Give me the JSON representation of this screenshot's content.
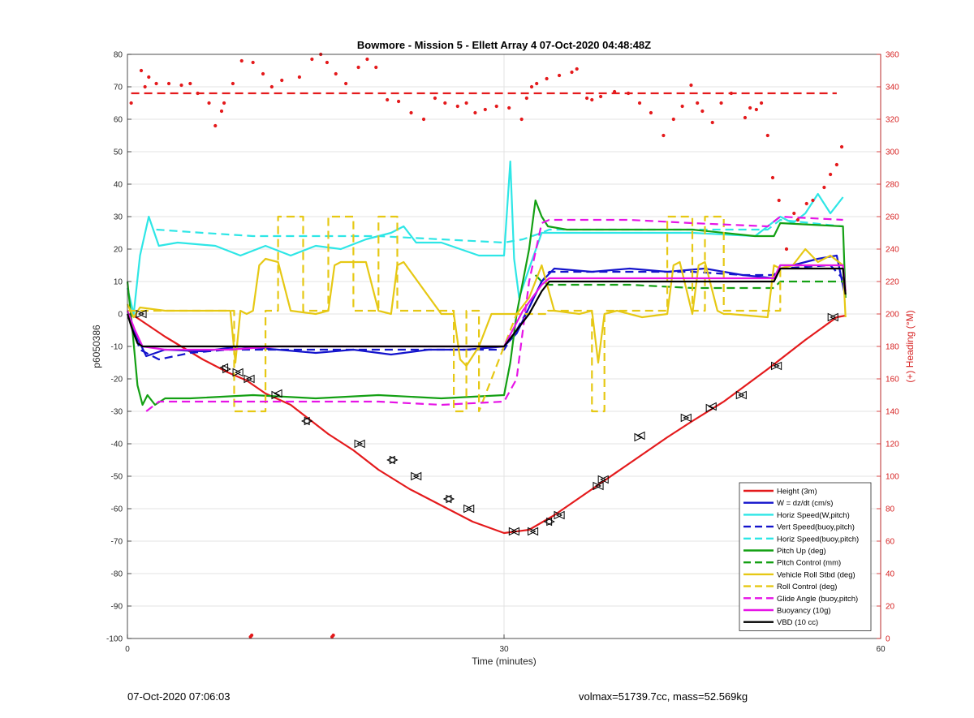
{
  "figure": {
    "footer_left": "07-Oct-2020 07:06:03",
    "footer_right": "volmax=51739.7cc, mass=52.569kg"
  },
  "chart_data": {
    "type": "line",
    "title": "Bowmore - Mission 5 - Ellett Array 4 07-Oct-2020 04:48:48Z",
    "xlabel": "Time (minutes)",
    "ylabel_left": "p6050386",
    "ylabel_right": "(+) Heading (°M)",
    "xlim": [
      0,
      60
    ],
    "ylim_left": [
      -100,
      80
    ],
    "ylim_right": [
      0,
      360
    ],
    "xticks": [
      0,
      30,
      60
    ],
    "yticks_left": [
      -100,
      -90,
      -80,
      -70,
      -60,
      -50,
      -40,
      -30,
      -20,
      -10,
      0,
      10,
      20,
      30,
      40,
      50,
      60,
      70,
      80
    ],
    "yticks_right": [
      0,
      20,
      40,
      60,
      80,
      100,
      120,
      140,
      160,
      180,
      200,
      220,
      240,
      260,
      280,
      300,
      320,
      340,
      360
    ],
    "grid": true,
    "legend_position": "bottom-right",
    "colors": {
      "red": "#e41a1c",
      "blue": "#1414cc",
      "cyan": "#2ee6e6",
      "green": "#14a014",
      "yellow": "#e6c814",
      "magenta": "#e614e6",
      "black": "#000000",
      "axis_red": "#d62020"
    },
    "series": [
      {
        "name": "Height (3m)",
        "color": "red",
        "style": "solid",
        "axis": "left",
        "x": [
          0,
          0.7,
          3,
          6,
          8,
          9.5,
          11,
          13,
          16,
          18,
          20,
          22.5,
          25,
          27.5,
          30,
          32,
          34,
          37,
          40,
          43,
          45,
          47.5,
          51,
          54,
          56.5,
          57.2
        ],
        "y": [
          0,
          -1,
          -7,
          -14,
          -18,
          -20.5,
          -24.5,
          -28,
          -37,
          -42,
          -48,
          -54,
          -59,
          -64,
          -67.5,
          -66.5,
          -62,
          -54,
          -46,
          -38,
          -33,
          -27,
          -17,
          -8,
          -1,
          -0.5
        ]
      },
      {
        "name": "W = dz/dt (cm/s)",
        "color": "blue",
        "style": "solid",
        "axis": "left",
        "x": [
          0,
          0.5,
          1.5,
          3,
          6,
          9,
          12,
          15,
          18,
          21,
          24,
          27,
          30,
          31,
          32,
          33,
          34,
          37,
          40,
          43,
          46,
          49,
          51.5,
          52,
          53,
          55,
          56.5,
          57.2
        ],
        "y": [
          0,
          -5,
          -13,
          -11,
          -11.5,
          -10,
          -11,
          -12,
          -11,
          -12.5,
          -11,
          -11,
          -10,
          -6,
          2,
          10,
          14,
          13,
          14,
          13,
          14,
          12,
          11,
          15,
          15,
          17,
          18,
          5
        ]
      },
      {
        "name": "Horiz Speed(W,pitch)",
        "color": "cyan",
        "style": "solid",
        "axis": "left",
        "x": [
          0,
          0.5,
          1,
          1.7,
          2.5,
          4,
          7,
          9,
          11,
          13,
          15,
          17,
          19,
          21,
          22,
          23,
          25,
          28,
          30,
          30.5,
          30.8,
          31.2,
          32,
          33,
          35,
          40,
          45,
          50,
          52,
          53,
          54,
          55,
          56,
          57
        ],
        "y": [
          8,
          0,
          18,
          30,
          21,
          22,
          21,
          18,
          21,
          18,
          21,
          20,
          23,
          25,
          27,
          22,
          22,
          18,
          18,
          47,
          17,
          5,
          14,
          25,
          25,
          25,
          25,
          24,
          30,
          28,
          31,
          37,
          31,
          36
        ]
      },
      {
        "name": "Vert Speed(buoy,pitch)",
        "color": "blue",
        "style": "dashed",
        "axis": "left",
        "x": [
          0,
          1,
          2.5,
          5,
          8,
          11,
          14,
          18,
          22,
          26,
          30,
          31,
          32,
          33,
          33.6,
          40,
          45,
          49,
          51.5,
          52,
          56,
          57.2
        ],
        "y": [
          0,
          -11,
          -14,
          -12,
          -11,
          -11,
          -11,
          -11,
          -11,
          -11,
          -11,
          -5,
          2,
          10,
          13,
          13,
          13,
          12,
          12,
          14,
          15,
          10
        ]
      },
      {
        "name": "Horiz Speed(buoy,pitch)",
        "color": "cyan",
        "style": "dashed",
        "axis": "left",
        "x": [
          2.3,
          6,
          10,
          15,
          20,
          25,
          30,
          31.5,
          33,
          33.6,
          40,
          45,
          51,
          52,
          57
        ],
        "y": [
          26,
          25,
          24,
          24,
          24,
          23,
          22,
          23,
          25,
          26,
          26,
          26,
          26,
          29,
          27
        ]
      },
      {
        "name": "Pitch Up (deg)",
        "color": "green",
        "style": "solid",
        "axis": "left",
        "x": [
          0,
          0.4,
          0.8,
          1.2,
          1.6,
          2.2,
          3,
          5,
          10,
          15,
          20,
          25,
          30,
          30.5,
          31,
          32,
          32.5,
          33,
          33.5,
          35,
          40,
          45,
          50,
          51.5,
          52,
          57,
          57.2
        ],
        "y": [
          10,
          -5,
          -22,
          -28,
          -25,
          -28,
          -26,
          -26,
          -25,
          -26,
          -25,
          -26,
          -25,
          -15,
          0,
          20,
          35,
          30,
          27,
          26,
          26,
          26,
          24,
          24,
          28,
          27,
          5
        ]
      },
      {
        "name": "Pitch Control (mm)",
        "color": "green",
        "style": "dashed",
        "axis": "left",
        "x": [
          32.5,
          33,
          33.6,
          40,
          45,
          51.5,
          52,
          57
        ],
        "y": [
          12,
          10,
          9,
          9,
          8,
          8,
          10,
          10
        ]
      },
      {
        "name": "Vehicle Roll Stbd (deg)",
        "color": "yellow",
        "style": "solid",
        "axis": "left",
        "x": [
          0,
          0.5,
          1,
          3,
          6,
          8.2,
          8.6,
          9,
          9.5,
          10,
          10.5,
          11,
          12,
          13,
          15,
          16,
          16.5,
          17,
          19,
          20,
          21,
          21.5,
          22,
          25,
          26,
          26.5,
          27,
          28,
          29,
          30,
          31,
          32,
          33,
          34,
          36,
          37,
          37.5,
          38,
          39,
          41,
          43,
          43.5,
          44,
          45,
          45.5,
          46,
          47,
          47.5,
          48,
          51,
          51.5,
          52,
          53,
          54,
          55,
          56,
          57,
          57.2
        ],
        "y": [
          3,
          -1,
          2,
          1,
          1,
          1,
          -15,
          1,
          0,
          1,
          15,
          17,
          16,
          1,
          0,
          1,
          15,
          16,
          16,
          1,
          0,
          15,
          16,
          0,
          0,
          -14,
          -16,
          -10,
          0,
          0,
          0,
          5,
          15,
          1,
          0,
          1,
          -15,
          0,
          1,
          -1,
          0,
          15,
          16,
          0,
          15,
          16,
          1,
          0,
          0,
          -1,
          15,
          14,
          15,
          20,
          16,
          18,
          15,
          -1
        ]
      },
      {
        "name": "Roll Control (deg)",
        "color": "yellow",
        "style": "dashed",
        "axis": "left",
        "x": [
          0,
          7,
          8.5,
          8.5,
          11,
          11,
          12,
          12,
          14,
          14,
          16,
          16,
          18,
          18,
          20,
          20,
          21.5,
          21.5,
          26,
          26,
          27,
          27,
          28,
          28,
          31,
          33.5,
          33.5,
          37,
          37,
          38,
          38,
          40,
          43,
          43,
          45,
          45,
          46,
          46,
          47.5,
          47.5,
          52,
          52,
          57
        ],
        "y": [
          1,
          1,
          1,
          -30,
          -30,
          1,
          1,
          30,
          30,
          1,
          1,
          30,
          30,
          1,
          1,
          30,
          30,
          1,
          1,
          -30,
          -30,
          1,
          1,
          -30,
          0,
          0,
          1,
          1,
          -30,
          -30,
          1,
          1,
          1,
          30,
          30,
          1,
          1,
          30,
          30,
          1,
          1,
          15,
          15
        ]
      },
      {
        "name": "Glide Angle (buoy,pitch)",
        "color": "magenta",
        "style": "dashed",
        "axis": "left",
        "x": [
          1.5,
          2.5,
          5,
          10,
          15,
          20,
          25,
          30,
          31,
          32,
          33,
          33.6,
          40,
          45,
          51,
          52,
          57
        ],
        "y": [
          -30,
          -27,
          -27,
          -27,
          -27,
          -27,
          -28,
          -27,
          -20,
          10,
          28,
          29,
          29,
          28,
          27,
          30,
          29
        ]
      },
      {
        "name": "Buoyancy (10g)",
        "color": "magenta",
        "style": "solid",
        "axis": "left",
        "x": [
          0,
          0.6,
          1.2,
          3,
          8,
          12,
          18,
          24,
          30,
          31.5,
          33,
          33.6,
          40,
          45,
          51.5,
          52,
          57,
          57.2
        ],
        "y": [
          1,
          -5,
          -10,
          -11,
          -11,
          -10,
          -10,
          -10,
          -10,
          1,
          9,
          11,
          11,
          11,
          11,
          15,
          15,
          7
        ]
      },
      {
        "name": "VBD (10 cc)",
        "color": "black",
        "style": "solid",
        "axis": "left",
        "x": [
          0,
          0.4,
          0.8,
          1.2,
          5,
          10,
          15,
          20,
          25,
          30,
          31,
          32,
          33,
          33.6,
          40,
          45,
          51.5,
          52,
          57,
          57.2
        ],
        "y": [
          0,
          -5,
          -9,
          -10,
          -10,
          -10,
          -10,
          -10,
          -10,
          -10,
          -5,
          0,
          7,
          10,
          10,
          10,
          10,
          14,
          14,
          6
        ]
      },
      {
        "name": "",
        "color": "red",
        "style": "dotted",
        "axis": "right",
        "note_hidden": true,
        "x": [
          0.3,
          1.1,
          1.4,
          1.7,
          2.3,
          3.3,
          4.3,
          5,
          5.6,
          6.5,
          7,
          7.5,
          7.7,
          8.4,
          9.1,
          10,
          10.8,
          11.5,
          12.3,
          13.7,
          14.7,
          15.4,
          15.9,
          16.6,
          17.4,
          18.4,
          19.1,
          19.8,
          20.7,
          21.6,
          22.6,
          23.6,
          24.5,
          25.3,
          26.3,
          27,
          27.7,
          28.5,
          29.4,
          30.4,
          31.4,
          31.8,
          32.2,
          32.6,
          33.4,
          34.4,
          35.4,
          35.8,
          36.6,
          37,
          37.7,
          38.8,
          39.9,
          40.8,
          41.7,
          42.7,
          43.5,
          44.2,
          44.9,
          45.4,
          45.8,
          46.6,
          47.3,
          48.1,
          49.2,
          49.6,
          50.1,
          50.5,
          51,
          51.4,
          51.9,
          52.5,
          53.1,
          53.4,
          54.1,
          54.6,
          55.5,
          56,
          56.5,
          56.9
        ],
        "y": [
          330,
          350,
          340,
          346,
          342,
          342,
          341,
          342,
          336,
          330,
          316,
          325,
          330,
          342,
          356,
          355,
          348,
          340,
          344,
          346,
          357,
          360,
          355,
          348,
          342,
          352,
          357,
          352,
          332,
          331,
          324,
          320,
          333,
          330,
          328,
          330,
          324,
          326,
          328,
          327,
          320,
          333,
          340,
          342,
          345,
          347,
          349,
          351,
          333,
          332,
          334,
          337,
          336,
          330,
          324,
          310,
          320,
          328,
          341,
          330,
          325,
          318,
          330,
          336,
          321,
          327,
          326,
          330,
          310,
          284,
          270,
          240,
          262,
          258,
          268,
          270,
          278,
          286,
          292,
          303
        ]
      },
      {
        "name": "",
        "color": "red",
        "style": "dashed",
        "axis": "right",
        "note_hidden": true,
        "x": [
          0.3,
          56.5
        ],
        "y": [
          336,
          336
        ]
      },
      {
        "name": "",
        "color": "red",
        "style": "dots",
        "axis": "right",
        "note_hidden": true,
        "x": [
          9.8,
          9.9,
          16.3,
          16.4
        ],
        "y": [
          1,
          2,
          1,
          2
        ]
      }
    ],
    "markers": [
      {
        "shape": "right-triangle",
        "axis": "left",
        "x": [
          1,
          7.9,
          8.7,
          9.6,
          11.8,
          14.4,
          18.4,
          21.2,
          22.9,
          25.7,
          27.1,
          30.7,
          32.2,
          33.7,
          34.3,
          37.4,
          37.8,
          40.7,
          44.4,
          46.4,
          48.8,
          51.6,
          56.1
        ],
        "y": [
          0,
          -17,
          -18,
          -20,
          -25,
          -33,
          -40,
          -45,
          -50,
          -57,
          -60,
          -67,
          -67,
          -64,
          -62,
          -53,
          -51,
          -38,
          -32,
          -29,
          -25,
          -16,
          -1
        ]
      },
      {
        "shape": "left-triangle",
        "axis": "left",
        "x": [
          1.2,
          7.7,
          8.9,
          9.8,
          12,
          14.2,
          18.6,
          21,
          23.1,
          25.5,
          27.3,
          30.9,
          32.4,
          33.5,
          34.5,
          37.6,
          38,
          40.9,
          44.6,
          46.6,
          49,
          51.8,
          56.3
        ],
        "y": [
          0,
          -16.5,
          -18,
          -20,
          -24.5,
          -33,
          -40,
          -45,
          -50,
          -57,
          -60,
          -67,
          -67,
          -64,
          -62,
          -53,
          -51,
          -37.5,
          -32,
          -28.5,
          -25,
          -16,
          -1
        ]
      }
    ]
  }
}
